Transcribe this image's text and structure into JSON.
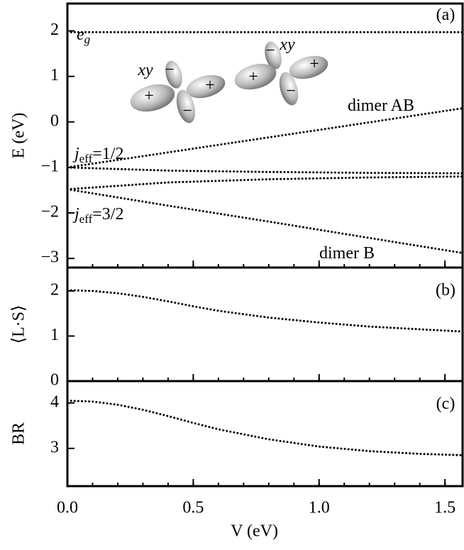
{
  "chart_data": [
    {
      "type": "line",
      "ylabel": "E (eV)",
      "x": [
        0,
        0.4,
        0.8,
        1.2,
        1.57
      ],
      "series": [
        {
          "color": "#000000",
          "values": [
            1.97,
            1.97,
            1.97,
            1.97,
            1.97
          ]
        },
        {
          "color": "#000000",
          "values": [
            -1,
            -0.67,
            -0.34,
            -0.01,
            0.3
          ]
        },
        {
          "color": "#000000",
          "values": [
            -1,
            -1.07,
            -1.1,
            -1.12,
            -1.13
          ]
        },
        {
          "color": "#000000",
          "values": [
            -1.48,
            -1.33,
            -1.26,
            -1.22,
            -1.2
          ]
        },
        {
          "color": "#000000",
          "values": [
            -1.48,
            -1.84,
            -2.19,
            -2.55,
            -2.88
          ]
        }
      ],
      "xlim": [
        0,
        1.57
      ],
      "xticks": [
        0,
        0.5,
        1,
        1.5
      ],
      "xminor": 0.1,
      "ylim": [
        -3.2,
        2.6
      ],
      "yticks": [
        {
          "value": -3,
          "label": "−3"
        },
        {
          "value": -2,
          "label": "−2"
        },
        {
          "value": -1,
          "label": "−1"
        },
        0,
        1,
        2
      ],
      "annotations": [
        {
          "text": "(a)"
        },
        {
          "text": "e",
          "sub": "g"
        },
        {
          "text": "dimer AB"
        },
        {
          "text": "j",
          "sub": "eff",
          "tail": "=1/2"
        },
        {
          "text": "j",
          "sub": "eff",
          "tail": "=3/2"
        },
        {
          "text": "dimer B"
        },
        {
          "text": "xy"
        },
        {
          "text": "xy"
        }
      ],
      "orbital_signs": {
        "plus": "+",
        "minus": "−"
      }
    },
    {
      "type": "line",
      "ylabel": "⟨L·S⟩",
      "x": [
        0,
        0.1,
        0.2,
        0.3,
        0.4,
        0.5,
        0.6,
        0.8,
        1.0,
        1.2,
        1.4,
        1.57
      ],
      "series": [
        {
          "color": "#000000",
          "values": [
            2.02,
            2.0,
            1.95,
            1.87,
            1.77,
            1.66,
            1.56,
            1.41,
            1.3,
            1.21,
            1.15,
            1.1
          ]
        }
      ],
      "xlim": [
        0,
        1.57
      ],
      "xticks": [
        0,
        0.5,
        1,
        1.5
      ],
      "xminor": 0.1,
      "ylim": [
        0,
        2.52
      ],
      "yticks": [
        0,
        1,
        2
      ],
      "annotations": [
        {
          "text": "(b)"
        }
      ]
    },
    {
      "type": "line",
      "ylabel": "BR",
      "xlabel": "V (eV)",
      "x": [
        0,
        0.1,
        0.2,
        0.3,
        0.4,
        0.5,
        0.6,
        0.8,
        1.0,
        1.2,
        1.4,
        1.57
      ],
      "series": [
        {
          "color": "#000000",
          "values": [
            4.05,
            4.03,
            3.96,
            3.85,
            3.71,
            3.56,
            3.42,
            3.2,
            3.04,
            2.94,
            2.88,
            2.85
          ]
        }
      ],
      "xlim": [
        0,
        1.57
      ],
      "xticks": [
        {
          "value": 0,
          "label": "0.0"
        },
        {
          "value": 0.5,
          "label": "0.5"
        },
        {
          "value": 1,
          "label": "1.0"
        },
        {
          "value": 1.5,
          "label": "1.5"
        }
      ],
      "xminor": 0.1,
      "ylim": [
        2.17,
        4.48
      ],
      "yticks": [
        3,
        4
      ],
      "annotations": [
        {
          "text": "(c)"
        }
      ]
    }
  ]
}
